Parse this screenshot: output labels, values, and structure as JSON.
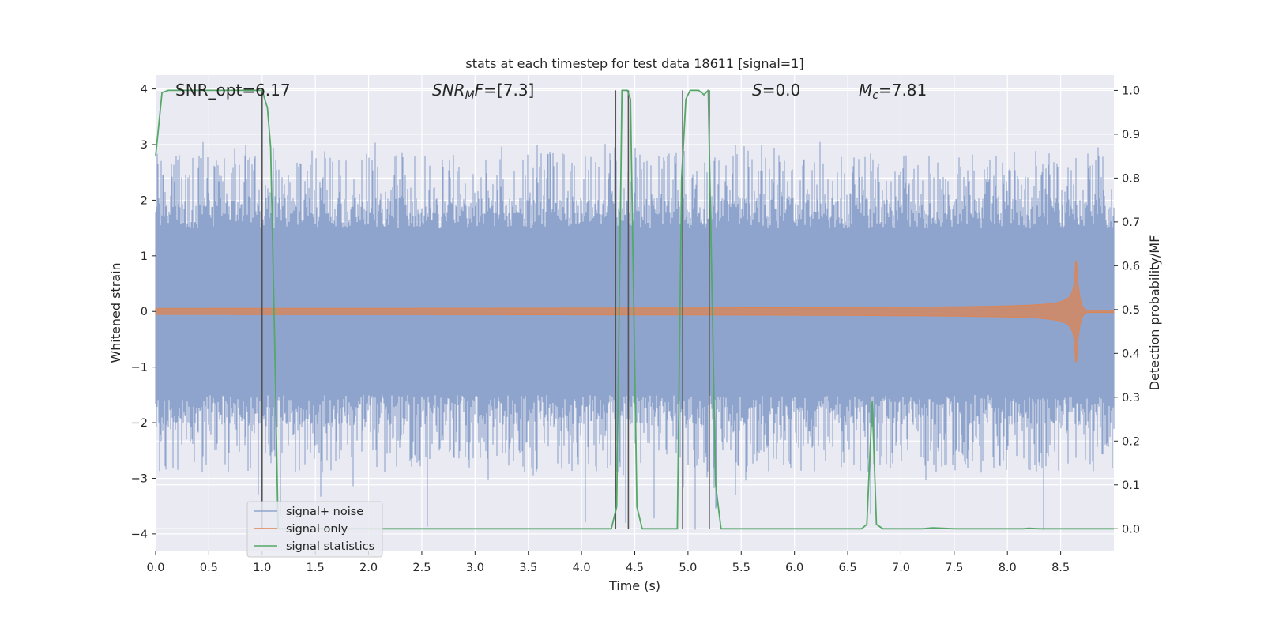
{
  "chart_data": {
    "type": "line",
    "title": "stats at each timestep for test data 18611 [signal=1]",
    "xlabel": "Time (s)",
    "ylabel_left": "Whitened strain",
    "ylabel_right": "Detection probability/MF",
    "xlim": [
      0,
      9.0
    ],
    "ylim_left": [
      -4.3,
      4.25
    ],
    "ylim_right": [
      -0.05,
      1.035
    ],
    "x_ticks": [
      0.0,
      0.5,
      1.0,
      1.5,
      2.0,
      2.5,
      3.0,
      3.5,
      4.0,
      4.5,
      5.0,
      5.5,
      6.0,
      6.5,
      7.0,
      7.5,
      8.0,
      8.5
    ],
    "x_tick_labels": [
      "0.0",
      "0.5",
      "1.0",
      "1.5",
      "2.0",
      "2.5",
      "3.0",
      "3.5",
      "4.0",
      "4.5",
      "5.0",
      "5.5",
      "6.0",
      "6.5",
      "7.0",
      "7.5",
      "8.0",
      "8.5"
    ],
    "y_left_ticks": [
      4,
      3,
      2,
      1,
      0,
      -1,
      -2,
      -3,
      -4
    ],
    "y_left_tick_labels": [
      "4",
      "3",
      "2",
      "1",
      "0",
      "−1",
      "−2",
      "−3",
      "−4"
    ],
    "y_right_ticks": [
      1.0,
      0.9,
      0.8,
      0.7,
      0.6,
      0.5,
      0.4,
      0.3,
      0.2,
      0.1,
      0.0
    ],
    "y_right_tick_labels": [
      "1.0",
      "0.9",
      "0.8",
      "0.7",
      "0.6",
      "0.5",
      "0.4",
      "0.3",
      "0.2",
      "0.1",
      "0.0"
    ],
    "grid": true,
    "legend_position": "lower-left",
    "annotations": [
      {
        "id": "snr-opt",
        "main": "SNR_opt=6.17",
        "sub": "",
        "rest": "",
        "italic": false
      },
      {
        "id": "snr-mf",
        "main": "SNR",
        "sub": "M",
        "rest": "F=[7.3]",
        "italic": true
      },
      {
        "id": "s-value",
        "main": "S",
        "sub": "",
        "rest": "=0.0",
        "italic": true
      },
      {
        "id": "chirp-mass",
        "main": "M",
        "sub": "c",
        "rest": "=7.81",
        "italic": true
      }
    ],
    "series": [
      {
        "name": "signal+ noise",
        "color": "#8fa4cc",
        "axis": "left",
        "kind": "noise",
        "typical_abs_range": [
          1.5,
          2.8
        ],
        "peak_max": 3.05,
        "peak_min": -4.0
      },
      {
        "name": "signal only",
        "color": "#dd8452",
        "axis": "left",
        "kind": "chirp",
        "merger_time": 8.65,
        "peak_amplitude": 0.9
      },
      {
        "name": "signal statistics",
        "color": "#55a868",
        "axis": "right",
        "kind": "line",
        "x": [
          0.0,
          0.06,
          0.12,
          0.2,
          0.4,
          0.6,
          0.8,
          0.95,
          1.0,
          1.05,
          1.08,
          1.12,
          1.15,
          1.2,
          1.5,
          2.0,
          2.5,
          3.0,
          3.5,
          4.0,
          4.2,
          4.28,
          4.33,
          4.38,
          4.43,
          4.46,
          4.52,
          4.57,
          4.65,
          4.8,
          4.9,
          4.94,
          4.98,
          5.02,
          5.1,
          5.15,
          5.19,
          5.26,
          5.31,
          5.5,
          6.0,
          6.5,
          6.63,
          6.68,
          6.73,
          6.77,
          6.83,
          6.9,
          7.0,
          7.2,
          7.3,
          7.5,
          8.0,
          8.15,
          8.2,
          8.3,
          9.0
        ],
        "y": [
          0.85,
          0.995,
          1.0,
          1.0,
          1.0,
          1.0,
          1.0,
          1.0,
          1.0,
          0.96,
          0.87,
          0.4,
          0.0,
          0.0,
          0.0,
          0.0,
          0.0,
          0.0,
          0.0,
          0.0,
          0.0,
          0.0,
          0.05,
          1.0,
          1.0,
          0.98,
          0.05,
          0.0,
          0.0,
          0.0,
          0.0,
          0.8,
          0.98,
          1.0,
          1.0,
          0.99,
          1.0,
          0.1,
          0.0,
          0.0,
          0.0,
          0.0,
          0.0,
          0.01,
          0.29,
          0.01,
          0.0,
          0.0,
          0.0,
          0.0,
          0.002,
          0.0,
          0.0,
          0.0,
          0.001,
          0.0,
          0.0
        ]
      }
    ],
    "vertical_lines": {
      "color": "#555555",
      "x": [
        1.0,
        4.32,
        4.44,
        4.95,
        5.2
      ],
      "y_top": 1.0,
      "y_bottom": 0.0
    }
  }
}
